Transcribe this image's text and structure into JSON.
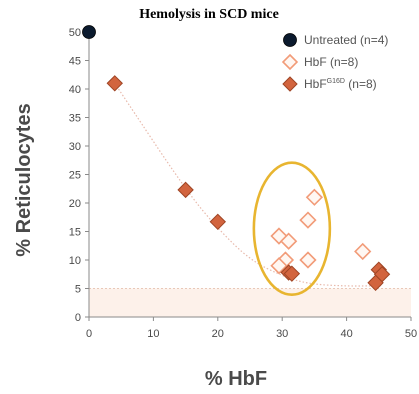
{
  "chart_data": {
    "type": "scatter",
    "title": "Hemolysis in SCD mice",
    "xlabel": "% HbF",
    "ylabel": "% Reticulocytes",
    "xlim": [
      0,
      50
    ],
    "ylim": [
      0,
      50
    ],
    "xticks": [
      0,
      10,
      20,
      30,
      40,
      50
    ],
    "yticks": [
      0,
      5,
      10,
      15,
      20,
      25,
      30,
      35,
      40,
      45,
      50
    ],
    "grid": false,
    "legend_position": "top-right",
    "series": [
      {
        "name": "Untreated (n=4)",
        "marker": "circle",
        "color": "#0b1a2e",
        "points": [
          [
            0,
            50
          ]
        ]
      },
      {
        "name": "HbF (n=8)",
        "marker": "diamond-open",
        "color": "#f29b78",
        "points": [
          [
            29.5,
            14.2
          ],
          [
            30.5,
            10
          ],
          [
            31,
            13.3
          ],
          [
            29.5,
            9
          ],
          [
            34,
            17
          ],
          [
            35,
            21
          ],
          [
            34,
            10
          ],
          [
            42.5,
            11.5
          ]
        ]
      },
      {
        "name": "HbF",
        "name_superscript": "G16D",
        "name_suffix": " (n=8)",
        "marker": "diamond-filled",
        "color": "#d2643e",
        "points": [
          [
            4,
            41
          ],
          [
            15,
            22.3
          ],
          [
            20,
            16.7
          ],
          [
            31,
            7.8
          ],
          [
            31.5,
            7.6
          ],
          [
            45,
            8.3
          ],
          [
            45.5,
            7.5
          ],
          [
            44.5,
            6
          ]
        ]
      }
    ],
    "annotations": {
      "shaded_band": {
        "y_from": 0,
        "y_to": 5,
        "color": "#fdf1ea"
      },
      "trend_curve": {
        "color": "#e8b9ab",
        "style": "dotted"
      },
      "highlight_ellipse": {
        "center_x": 31.5,
        "center_y": 15.5,
        "color": "#e8b530"
      }
    },
    "colors": {
      "axis": "#8a8a8a",
      "tick_text": "#4a4a4a"
    }
  }
}
